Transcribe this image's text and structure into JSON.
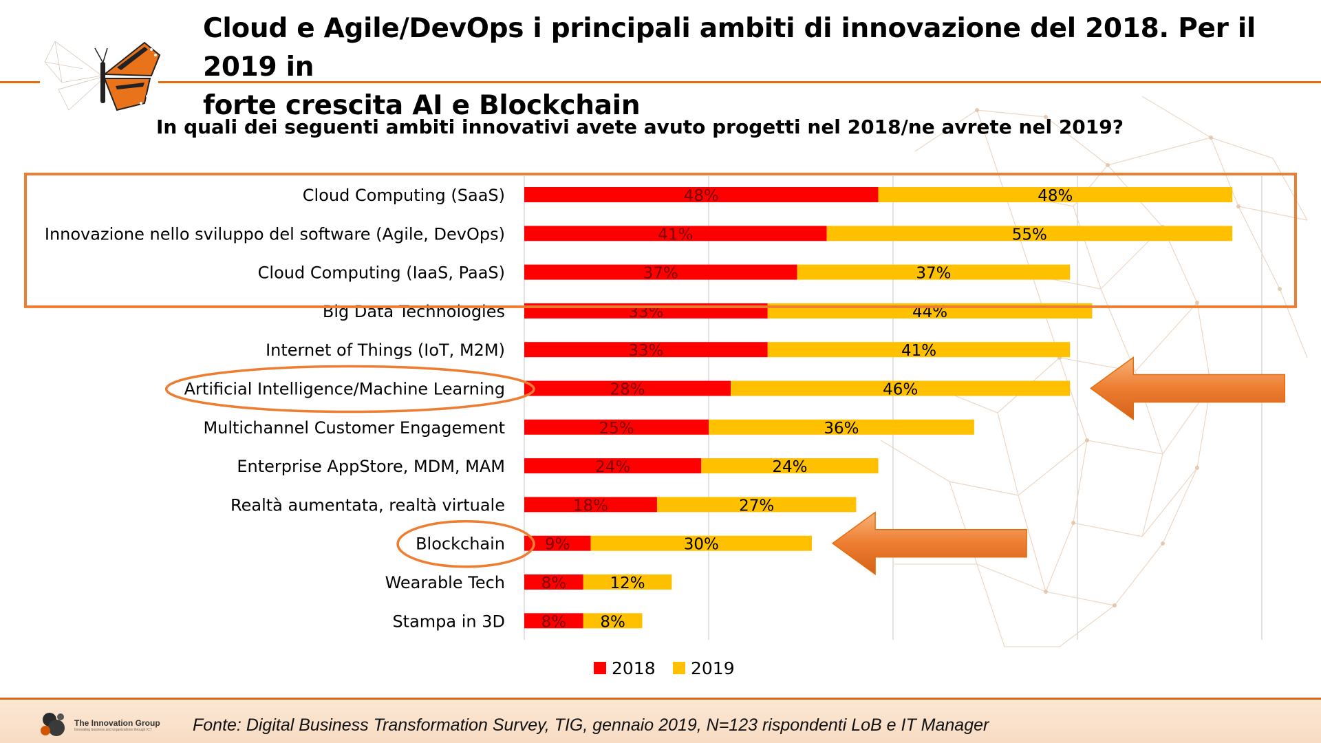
{
  "header": {
    "title_line1": "Cloud e Agile/DevOps i principali ambiti di innovazione del 2018. Per il 2019 in",
    "title_line2": "forte crescita AI e Blockchain"
  },
  "chart_data": {
    "type": "bar",
    "orientation": "horizontal",
    "stacked": true,
    "title": "In quali dei seguenti ambiti innovativi avete avuto progetti nel 2018/ne avrete nel 2019?",
    "categories": [
      "Cloud Computing (SaaS)",
      "Innovazione nello sviluppo del software (Agile, DevOps)",
      "Cloud Computing (IaaS, PaaS)",
      "Big Data Technologies",
      "Internet of Things (IoT, M2M)",
      "Artificial Intelligence/Machine Learning",
      "Multichannel Customer Engagement",
      "Enterprise AppStore, MDM, MAM",
      "Realtà aumentata, realtà virtuale",
      "Blockchain",
      "Wearable Tech",
      "Stampa in 3D"
    ],
    "series": [
      {
        "name": "2018",
        "color": "#ff0000",
        "values": [
          48,
          41,
          37,
          33,
          33,
          28,
          25,
          24,
          18,
          9,
          8,
          8
        ],
        "labels": [
          "48%",
          "41%",
          "37%",
          "33%",
          "33%",
          "28%",
          "25%",
          "24%",
          "18%",
          "9%",
          "8%",
          "8%"
        ]
      },
      {
        "name": "2019",
        "color": "#ffc000",
        "values": [
          48,
          55,
          37,
          44,
          41,
          46,
          36,
          24,
          27,
          30,
          12,
          8
        ],
        "labels": [
          "48%",
          "55%",
          "37%",
          "44%",
          "41%",
          "46%",
          "36%",
          "24%",
          "27%",
          "30%",
          "12%",
          "8%"
        ]
      }
    ],
    "xlim": [
      0,
      100
    ],
    "grid": true,
    "legend_position": "bottom",
    "highlights": {
      "box_categories": [
        "Cloud Computing (SaaS)",
        "Innovazione nello sviluppo del software (Agile, DevOps)",
        "Cloud Computing (IaaS, PaaS)"
      ],
      "circled_categories": [
        "Artificial Intelligence/Machine Learning",
        "Blockchain"
      ],
      "arrow_categories": [
        "Artificial Intelligence/Machine Learning",
        "Blockchain"
      ],
      "highlight_color": "#ed7d31"
    }
  },
  "footer": {
    "source": "Fonte: Digital Business Transformation Survey, TIG, gennaio 2019, N=123 rispondenti LoB e IT Manager",
    "company_name": "The Innovation Group",
    "company_tagline": "Innovating business and organizations through ICT"
  },
  "colors": {
    "accent": "#e46c0a",
    "bar_2018": "#ff0000",
    "bar_2019": "#ffc000"
  }
}
